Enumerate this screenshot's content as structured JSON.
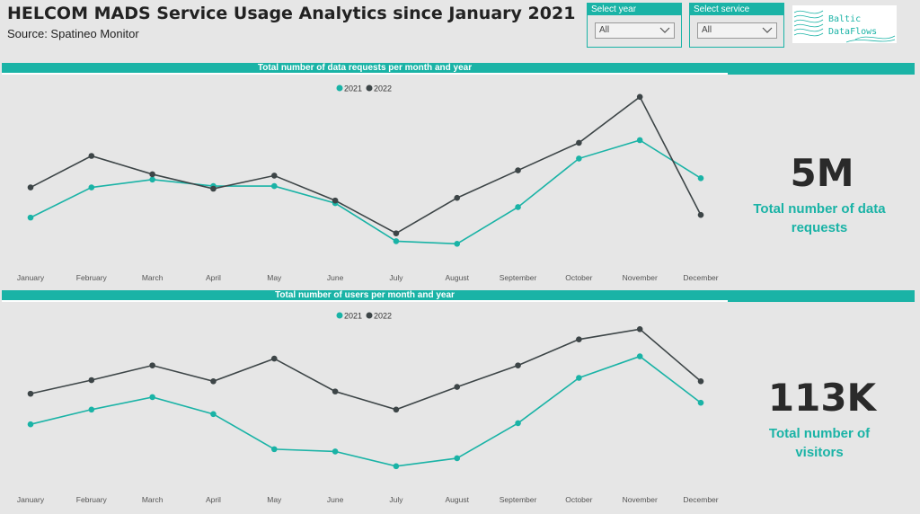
{
  "header": {
    "title": "HELCOM MADS Service Usage Analytics since January 2021",
    "subtitle": "Source: Spatineo Monitor"
  },
  "filters": {
    "year": {
      "label": "Select year",
      "value": "All"
    },
    "service": {
      "label": "Select service",
      "value": "All"
    }
  },
  "logo": {
    "line1": "Baltic",
    "line2": "DataFlows"
  },
  "colors": {
    "series_2021": "#1ab3a6",
    "series_2022": "#3d4547",
    "accent": "#1ab3a6"
  },
  "kpis": [
    {
      "value": "5M",
      "label_line1": "Total number of data",
      "label_line2": "requests"
    },
    {
      "value": "113K",
      "label_line1": "Total number of",
      "label_line2": "visitors"
    }
  ],
  "chart_data": [
    {
      "type": "line",
      "title": "Total number of data requests per month and year",
      "categories": [
        "January",
        "February",
        "March",
        "April",
        "May",
        "June",
        "July",
        "August",
        "September",
        "October",
        "November",
        "December"
      ],
      "legend_position": "top-center",
      "grid": false,
      "ylim": [
        0,
        100
      ],
      "series": [
        {
          "name": "2021",
          "values": [
            28,
            51,
            57,
            52,
            52,
            39,
            10,
            8,
            36,
            73,
            87,
            58
          ]
        },
        {
          "name": "2022",
          "values": [
            51,
            75,
            61,
            50,
            60,
            41,
            16,
            43,
            64,
            85,
            120,
            30
          ]
        }
      ]
    },
    {
      "type": "line",
      "title": "Total number of users per month and year",
      "categories": [
        "January",
        "February",
        "March",
        "April",
        "May",
        "June",
        "July",
        "August",
        "September",
        "October",
        "November",
        "December"
      ],
      "legend_position": "top-center",
      "grid": false,
      "ylim": [
        0,
        100
      ],
      "series": [
        {
          "name": "2021",
          "values": [
            34,
            47,
            58,
            43,
            12,
            10,
            -3,
            4,
            35,
            75,
            94,
            53
          ]
        },
        {
          "name": "2022",
          "values": [
            61,
            73,
            86,
            72,
            92,
            63,
            47,
            67,
            86,
            109,
            118,
            72
          ]
        }
      ]
    }
  ]
}
